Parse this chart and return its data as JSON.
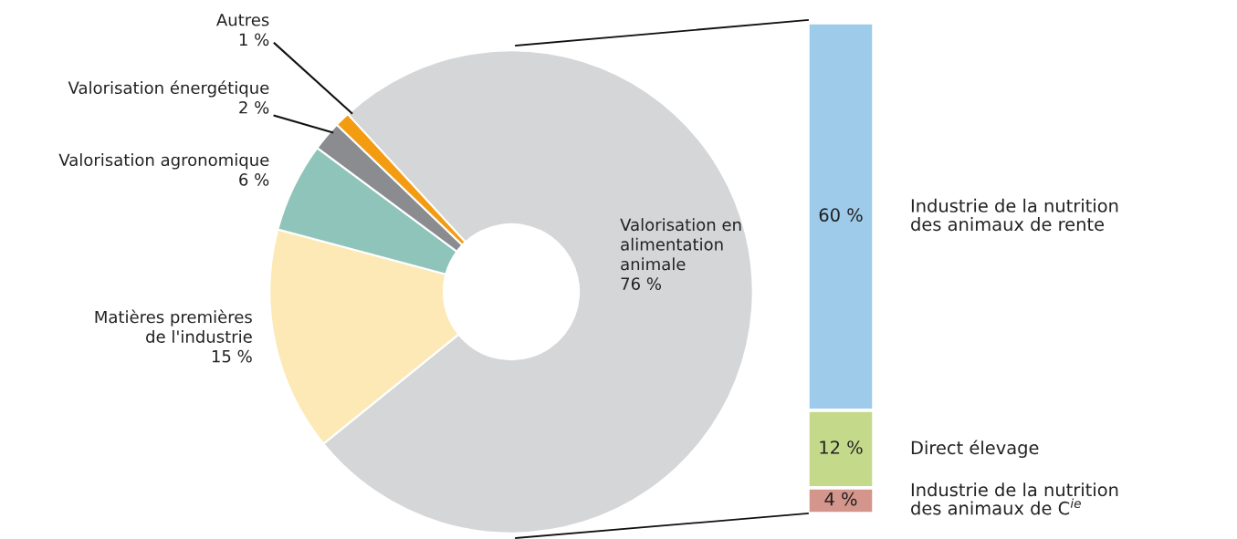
{
  "chart_data": [
    {
      "type": "donut",
      "categories": [
        "Valorisation en\nalimentation\nanimale",
        "Matières premières\nde l'industrie",
        "Valorisation agronomique",
        "Valorisation énergétique",
        "Autres"
      ],
      "values": [
        76,
        15,
        6,
        2,
        1
      ],
      "value_labels": [
        "76 %",
        "15 %",
        "6 %",
        "2 %",
        "1 %"
      ],
      "colors": [
        "#d5d6d8",
        "#fde9b6",
        "#8fc4bb",
        "#8a8c90",
        "#f39c12"
      ],
      "legend": false
    },
    {
      "type": "bar",
      "stacked": true,
      "categories": [
        null
      ],
      "series": [
        {
          "name": "Industrie de la nutrition\ndes animaux de C$^{ie}$",
          "color": "#d4958c",
          "values": [
            4
          ],
          "value_labels": [
            "4 %"
          ]
        },
        {
          "name": "Direct élevage",
          "color": "#c5d98a",
          "values": [
            12
          ],
          "value_labels": [
            "12 %"
          ]
        },
        {
          "name": "Industrie de la nutrition\ndes animaux de rente",
          "color": "#9fcbea",
          "values": [
            60
          ],
          "value_labels": [
            "60 %"
          ]
        }
      ],
      "legend": false
    }
  ]
}
